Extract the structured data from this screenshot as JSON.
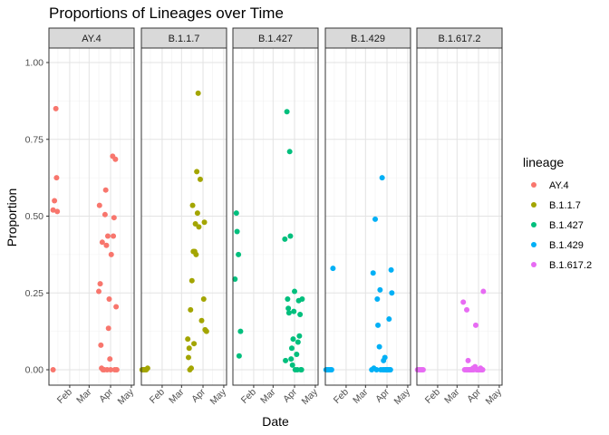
{
  "chart_data": {
    "type": "scatter",
    "title": "Proportions of Lineages over Time",
    "xlabel": "Date",
    "ylabel": "Proportion",
    "ylim": [
      0,
      1
    ],
    "xlim": [
      "2021-01-02",
      "2021-05-05"
    ],
    "yticks": [
      "0.00",
      "0.25",
      "0.50",
      "0.75",
      "1.00"
    ],
    "xticks": [
      {
        "date": "2021-02-01",
        "label": "Feb"
      },
      {
        "date": "2021-03-01",
        "label": "Mar"
      },
      {
        "date": "2021-04-01",
        "label": "Apr"
      },
      {
        "date": "2021-05-01",
        "label": "May"
      }
    ],
    "legend": {
      "title": "lineage",
      "position": "right"
    },
    "grid": true,
    "facets": [
      {
        "name": "AY.4",
        "color": "#F8766D",
        "points": [
          [
            "2021-01-08",
            0.0
          ],
          [
            "2021-01-08",
            0.52
          ],
          [
            "2021-01-10",
            0.55
          ],
          [
            "2021-01-12",
            0.85
          ],
          [
            "2021-01-13",
            0.625
          ],
          [
            "2021-01-14",
            0.515
          ],
          [
            "2021-03-15",
            0.255
          ],
          [
            "2021-03-16",
            0.535
          ],
          [
            "2021-03-17",
            0.28
          ],
          [
            "2021-03-18",
            0.08
          ],
          [
            "2021-03-19",
            0.005
          ],
          [
            "2021-03-20",
            0.415
          ],
          [
            "2021-03-21",
            0.0
          ],
          [
            "2021-03-23",
            0.0
          ],
          [
            "2021-03-24",
            0.505
          ],
          [
            "2021-03-25",
            0.585
          ],
          [
            "2021-03-26",
            0.405
          ],
          [
            "2021-03-27",
            0.0
          ],
          [
            "2021-03-28",
            0.435
          ],
          [
            "2021-03-29",
            0.135
          ],
          [
            "2021-03-30",
            0.23
          ],
          [
            "2021-03-31",
            0.035
          ],
          [
            "2021-04-01",
            0.0
          ],
          [
            "2021-04-02",
            0.375
          ],
          [
            "2021-04-04",
            0.695
          ],
          [
            "2021-04-05",
            0.435
          ],
          [
            "2021-04-06",
            0.495
          ],
          [
            "2021-04-07",
            0.0
          ],
          [
            "2021-04-08",
            0.685
          ],
          [
            "2021-04-09",
            0.205
          ],
          [
            "2021-04-10",
            0.0
          ]
        ]
      },
      {
        "name": "B.1.1.7",
        "color": "#A3A500",
        "points": [
          [
            "2021-01-03",
            0.0
          ],
          [
            "2021-01-05",
            0.0
          ],
          [
            "2021-01-07",
            0.0
          ],
          [
            "2021-01-09",
            0.0
          ],
          [
            "2021-01-11",
            0.005
          ],
          [
            "2021-03-10",
            0.1
          ],
          [
            "2021-03-11",
            0.04
          ],
          [
            "2021-03-12",
            0.07
          ],
          [
            "2021-03-13",
            0.0
          ],
          [
            "2021-03-14",
            0.195
          ],
          [
            "2021-03-15",
            0.005
          ],
          [
            "2021-03-16",
            0.29
          ],
          [
            "2021-03-17",
            0.535
          ],
          [
            "2021-03-18",
            0.385
          ],
          [
            "2021-03-19",
            0.085
          ],
          [
            "2021-03-20",
            0.385
          ],
          [
            "2021-03-21",
            0.475
          ],
          [
            "2021-03-22",
            0.375
          ],
          [
            "2021-03-23",
            0.645
          ],
          [
            "2021-03-24",
            0.51
          ],
          [
            "2021-03-25",
            0.9
          ],
          [
            "2021-03-26",
            0.465
          ],
          [
            "2021-03-28",
            0.62
          ],
          [
            "2021-03-30",
            0.16
          ],
          [
            "2021-04-02",
            0.23
          ],
          [
            "2021-04-03",
            0.48
          ],
          [
            "2021-04-04",
            0.13
          ],
          [
            "2021-04-06",
            0.125
          ]
        ]
      },
      {
        "name": "B.1.427",
        "color": "#00BF7D",
        "points": [
          [
            "2021-01-05",
            0.295
          ],
          [
            "2021-01-07",
            0.51
          ],
          [
            "2021-01-08",
            0.45
          ],
          [
            "2021-01-10",
            0.375
          ],
          [
            "2021-01-11",
            0.045
          ],
          [
            "2021-01-13",
            0.125
          ],
          [
            "2021-03-18",
            0.425
          ],
          [
            "2021-03-19",
            0.03
          ],
          [
            "2021-03-21",
            0.84
          ],
          [
            "2021-03-22",
            0.23
          ],
          [
            "2021-03-23",
            0.2
          ],
          [
            "2021-03-24",
            0.185
          ],
          [
            "2021-03-25",
            0.71
          ],
          [
            "2021-03-26",
            0.435
          ],
          [
            "2021-03-27",
            0.035
          ],
          [
            "2021-03-28",
            0.07
          ],
          [
            "2021-03-29",
            0.015
          ],
          [
            "2021-03-30",
            0.1
          ],
          [
            "2021-03-31",
            0.19
          ],
          [
            "2021-04-01",
            0.255
          ],
          [
            "2021-04-02",
            0.0
          ],
          [
            "2021-04-04",
            0.05
          ],
          [
            "2021-04-05",
            0.0
          ],
          [
            "2021-04-06",
            0.09
          ],
          [
            "2021-04-07",
            0.225
          ],
          [
            "2021-04-08",
            0.11
          ],
          [
            "2021-04-09",
            0.18
          ],
          [
            "2021-04-10",
            0.0
          ],
          [
            "2021-04-11",
            0.0
          ],
          [
            "2021-04-12",
            0.23
          ]
        ]
      },
      {
        "name": "B.1.429",
        "color": "#00B0F6",
        "points": [
          [
            "2021-01-03",
            0.0
          ],
          [
            "2021-01-05",
            0.0
          ],
          [
            "2021-01-07",
            0.0
          ],
          [
            "2021-01-09",
            0.0
          ],
          [
            "2021-01-11",
            0.0
          ],
          [
            "2021-01-13",
            0.33
          ],
          [
            "2021-03-10",
            0.0
          ],
          [
            "2021-03-12",
            0.315
          ],
          [
            "2021-03-13",
            0.005
          ],
          [
            "2021-03-15",
            0.49
          ],
          [
            "2021-03-17",
            0.0
          ],
          [
            "2021-03-18",
            0.23
          ],
          [
            "2021-03-19",
            0.145
          ],
          [
            "2021-03-21",
            0.075
          ],
          [
            "2021-03-22",
            0.26
          ],
          [
            "2021-03-23",
            0.0
          ],
          [
            "2021-03-25",
            0.625
          ],
          [
            "2021-03-26",
            0.0
          ],
          [
            "2021-03-27",
            0.03
          ],
          [
            "2021-03-28",
            0.0
          ],
          [
            "2021-03-29",
            0.04
          ],
          [
            "2021-03-30",
            0.0
          ],
          [
            "2021-03-31",
            0.0
          ],
          [
            "2021-04-01",
            0.0
          ],
          [
            "2021-04-02",
            0.0
          ],
          [
            "2021-04-03",
            0.0
          ],
          [
            "2021-04-04",
            0.165
          ],
          [
            "2021-04-05",
            0.0
          ],
          [
            "2021-04-06",
            0.0
          ],
          [
            "2021-04-07",
            0.325
          ],
          [
            "2021-04-08",
            0.25
          ]
        ]
      },
      {
        "name": "B.1.617.2",
        "color": "#E76BF3",
        "points": [
          [
            "2021-01-03",
            0.0
          ],
          [
            "2021-01-05",
            0.0
          ],
          [
            "2021-01-07",
            0.0
          ],
          [
            "2021-01-09",
            0.0
          ],
          [
            "2021-01-11",
            0.0
          ],
          [
            "2021-03-10",
            0.22
          ],
          [
            "2021-03-12",
            0.0
          ],
          [
            "2021-03-14",
            0.0
          ],
          [
            "2021-03-15",
            0.195
          ],
          [
            "2021-03-16",
            0.0
          ],
          [
            "2021-03-17",
            0.03
          ],
          [
            "2021-03-18",
            0.0
          ],
          [
            "2021-03-19",
            0.0
          ],
          [
            "2021-03-20",
            0.0
          ],
          [
            "2021-03-21",
            0.0
          ],
          [
            "2021-03-22",
            0.0
          ],
          [
            "2021-03-23",
            0.0
          ],
          [
            "2021-03-24",
            0.005
          ],
          [
            "2021-03-25",
            0.0
          ],
          [
            "2021-03-26",
            0.005
          ],
          [
            "2021-03-27",
            0.01
          ],
          [
            "2021-03-28",
            0.145
          ],
          [
            "2021-03-29",
            0.0
          ],
          [
            "2021-03-30",
            0.0
          ],
          [
            "2021-03-31",
            0.0
          ],
          [
            "2021-04-01",
            0.0
          ],
          [
            "2021-04-02",
            0.0
          ],
          [
            "2021-04-03",
            0.0
          ],
          [
            "2021-04-04",
            0.005
          ],
          [
            "2021-04-05",
            0.0
          ],
          [
            "2021-04-06",
            0.0
          ],
          [
            "2021-04-07",
            0.0
          ],
          [
            "2021-04-08",
            0.255
          ]
        ]
      }
    ]
  }
}
